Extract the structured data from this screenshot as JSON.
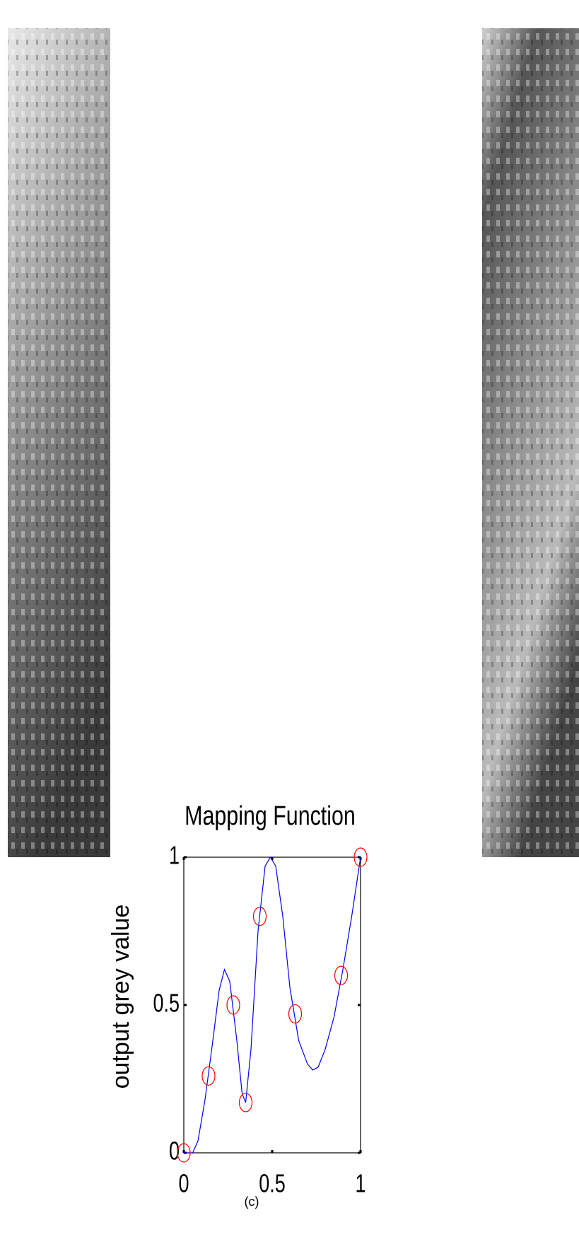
{
  "chart_data": {
    "type": "line",
    "title": "Mapping Function",
    "ylabel": "output grey value",
    "xlim": [
      0,
      1
    ],
    "ylim": [
      0,
      1
    ],
    "xticks": [
      0,
      0.5,
      1
    ],
    "yticks": [
      0,
      0.5,
      1
    ],
    "series": [
      {
        "style": "line",
        "color": "#0000ff",
        "x": [
          0,
          0.05,
          0.08,
          0.12,
          0.16,
          0.2,
          0.23,
          0.26,
          0.3,
          0.33,
          0.35,
          0.38,
          0.42,
          0.46,
          0.49,
          0.52,
          0.56,
          0.6,
          0.65,
          0.7,
          0.73,
          0.76,
          0.8,
          0.85,
          0.9,
          0.95,
          1
        ],
        "values": [
          0,
          0,
          0.04,
          0.18,
          0.36,
          0.55,
          0.62,
          0.58,
          0.38,
          0.2,
          0.17,
          0.35,
          0.75,
          0.97,
          1,
          0.97,
          0.8,
          0.56,
          0.38,
          0.3,
          0.28,
          0.29,
          0.35,
          0.46,
          0.62,
          0.8,
          1
        ]
      },
      {
        "style": "markers",
        "color": "#ff0000",
        "x": [
          0,
          0.14,
          0.28,
          0.35,
          0.43,
          0.63,
          0.89,
          1
        ],
        "values": [
          0,
          0.26,
          0.5,
          0.17,
          0.8,
          0.47,
          0.6,
          1
        ]
      }
    ]
  },
  "caption": "(c)"
}
